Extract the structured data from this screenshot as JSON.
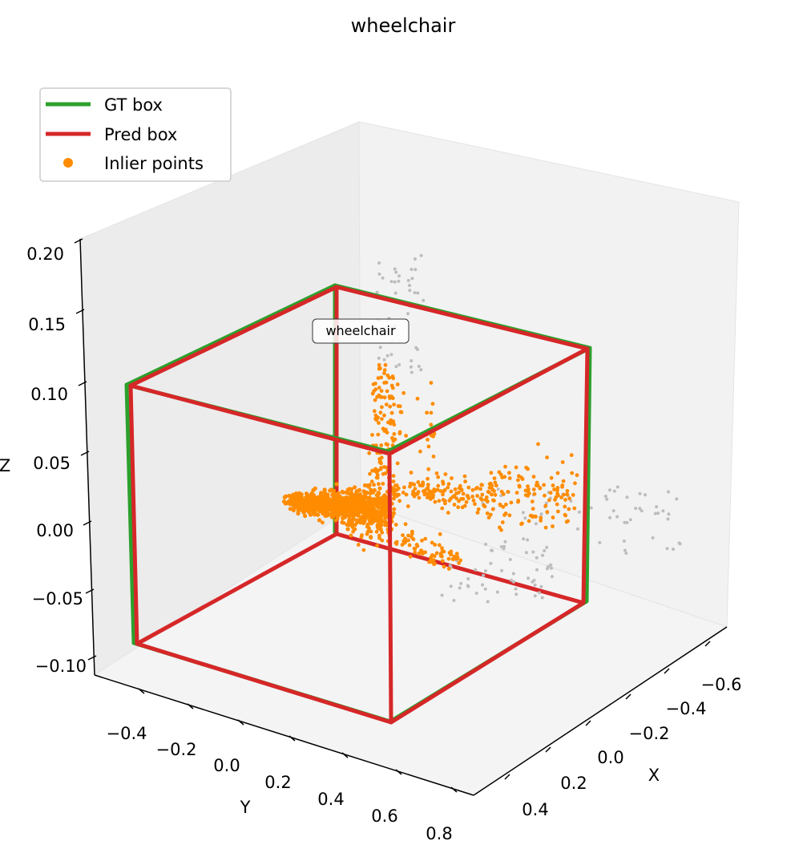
{
  "chart_data": {
    "type": "scatter",
    "subtype": "3d-scatter-with-bounding-boxes",
    "title": "wheelchair",
    "xlabel": "X",
    "ylabel": "Y",
    "zlabel": "Z",
    "x_ticks": [
      "−0.6",
      "−0.4",
      "−0.2",
      "0.0",
      "0.2",
      "0.4"
    ],
    "y_ticks": [
      "−0.4",
      "−0.2",
      "0.0",
      "0.2",
      "0.4",
      "0.6",
      "0.8"
    ],
    "z_ticks": [
      "0.20",
      "0.15",
      "0.10",
      "0.05",
      "0.00",
      "−0.05",
      "−0.10"
    ],
    "legend_position": "top-left",
    "legend": [
      {
        "label": "GT box",
        "kind": "line",
        "color": "#2ca02c"
      },
      {
        "label": "Pred box",
        "kind": "line",
        "color": "#d62728"
      },
      {
        "label": "Inlier points",
        "kind": "marker",
        "color": "#ff8c00"
      }
    ],
    "box_label": "wheelchair",
    "series": [
      {
        "name": "GT box",
        "color": "#2ca02c"
      },
      {
        "name": "Pred box",
        "color": "#d62728"
      },
      {
        "name": "Inlier points",
        "color": "#ff8c00"
      }
    ],
    "outlier_color": "#bdbdbd",
    "grid": false
  }
}
